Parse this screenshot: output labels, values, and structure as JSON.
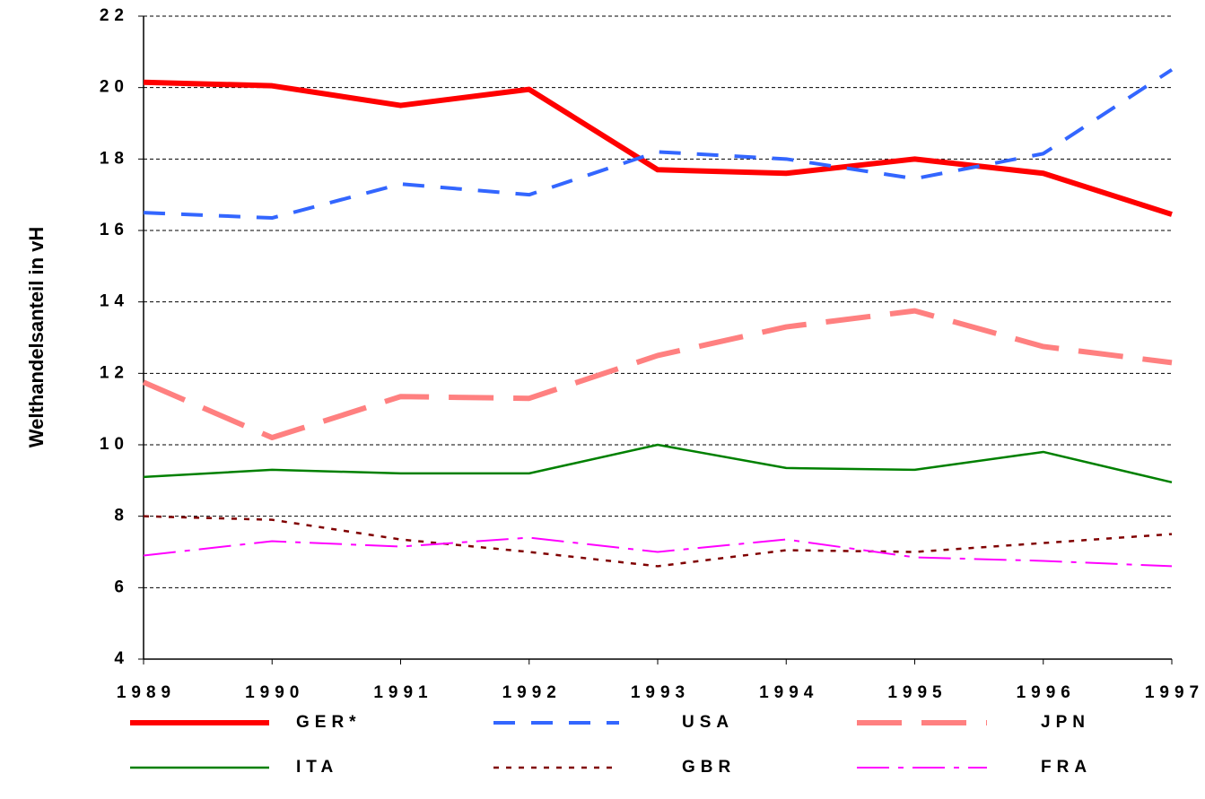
{
  "chart_data": {
    "type": "line",
    "y_label": "Welthandelsanteil in vH",
    "x": [
      1989,
      1990,
      1991,
      1992,
      1993,
      1994,
      1995,
      1996,
      1997
    ],
    "xlim": [
      1989,
      1997
    ],
    "xticks": [
      1989,
      1990,
      1991,
      1992,
      1993,
      1994,
      1995,
      1996,
      1997
    ],
    "ylim": [
      4,
      22
    ],
    "yticks": [
      4,
      6,
      8,
      10,
      12,
      14,
      16,
      18,
      20,
      22
    ],
    "grid": true,
    "series": [
      {
        "name": "GER*",
        "color": "#ff0000",
        "values": [
          20.15,
          20.05,
          19.5,
          19.95,
          17.7,
          17.6,
          18.0,
          17.6,
          16.45
        ]
      },
      {
        "name": "USA",
        "color": "#3366ff",
        "values": [
          16.5,
          16.35,
          17.3,
          17.0,
          18.2,
          18.0,
          17.45,
          18.15,
          20.5
        ]
      },
      {
        "name": "JPN",
        "color": "#ff8080",
        "values": [
          11.75,
          10.2,
          11.35,
          11.3,
          12.5,
          13.3,
          13.75,
          12.75,
          12.3
        ]
      },
      {
        "name": "ITA",
        "color": "#008000",
        "values": [
          9.1,
          9.3,
          9.2,
          9.2,
          10.0,
          9.35,
          9.3,
          9.8,
          8.95
        ]
      },
      {
        "name": "GBR",
        "color": "#800000",
        "values": [
          8.0,
          7.9,
          7.35,
          7.0,
          6.6,
          7.05,
          7.0,
          7.25,
          7.5
        ]
      },
      {
        "name": "FRA",
        "color": "#ff00ff",
        "values": [
          6.9,
          7.3,
          7.15,
          7.4,
          7.0,
          7.35,
          6.85,
          6.75,
          6.6
        ]
      }
    ]
  }
}
